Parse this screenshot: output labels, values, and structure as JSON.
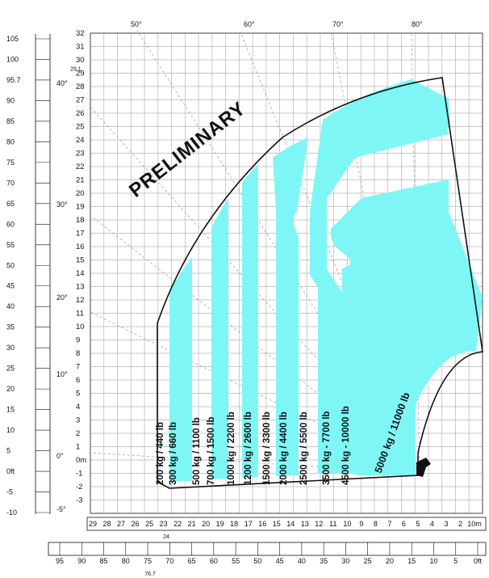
{
  "watermark": "PRELIMINARY",
  "colors": {
    "zone": "#7ff6f6",
    "grid": "#b5b5b5",
    "outline": "#111111",
    "background": "#ffffff"
  },
  "left_ft_scale": {
    "labels": [
      "105",
      "100",
      "95.7",
      "90",
      "85",
      "80",
      "75",
      "70",
      "65",
      "60",
      "55",
      "50",
      "45",
      "40",
      "35",
      "30",
      "25",
      "20",
      "15",
      "10",
      "5",
      "0ft",
      "-5",
      "-10"
    ]
  },
  "height_m_scale": {
    "labels": [
      "32",
      "31",
      "30",
      "29.1",
      "29",
      "28",
      "27",
      "26",
      "25",
      "24",
      "23",
      "22",
      "21",
      "20",
      "19",
      "18",
      "17",
      "16",
      "15",
      "14",
      "13",
      "12",
      "11",
      "10",
      "9",
      "8",
      "7",
      "6",
      "5",
      "4",
      "3",
      "2",
      "1",
      "0m",
      "-1",
      "-2",
      "-3"
    ]
  },
  "angles": {
    "top": [
      "50°",
      "60°",
      "70°",
      "80°"
    ],
    "left": [
      "40°",
      "30°",
      "20°",
      "10°",
      "0°",
      "-5°"
    ]
  },
  "bottom_m_scale": {
    "labels": [
      "29",
      "28",
      "27",
      "26",
      "25",
      "23",
      "22",
      "21",
      "20",
      "19",
      "18",
      "17",
      "16",
      "15",
      "14",
      "13",
      "12",
      "11",
      "10",
      "9",
      "8",
      "7",
      "6",
      "5",
      "4",
      "3",
      "2",
      "10m"
    ],
    "sub_label": "24"
  },
  "bottom_ft_scale": {
    "labels": [
      "95",
      "90",
      "85",
      "80",
      "75",
      "70",
      "65",
      "60",
      "55",
      "50",
      "45",
      "40",
      "35",
      "30",
      "25",
      "20",
      "15",
      "10",
      "5",
      "0ft"
    ],
    "sub_label": "76.7"
  },
  "load_zones": [
    "200 kg / 440 lb",
    "300 kg / 660 lb",
    "500 kg / 1100 lb",
    "700 kg / 1500 lb",
    "1000 kg / 2200 lb",
    "1200 kg / 2600 lb",
    "1500 kg / 3300 lb",
    "2000 kg / 4400 lb",
    "2500 kg / 5500 lb",
    "3500 kg - 7700 lb",
    "4500 kg - 10000 lb",
    "5000 kg / 11000 lb"
  ]
}
